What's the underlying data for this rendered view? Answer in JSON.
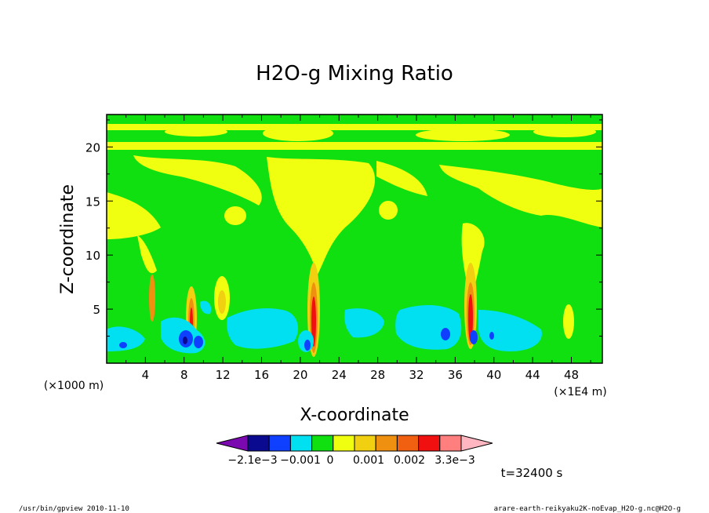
{
  "chart_data": {
    "type": "heatmap",
    "title": "H2O-g Mixing Ratio",
    "xlabel": "X-coordinate",
    "ylabel": "Z-coordinate",
    "x_unit_left": "(×1000 m)",
    "x_unit_right": "(×1E4 m)",
    "x_ticks": [
      "4",
      "8",
      "12",
      "16",
      "20",
      "24",
      "28",
      "32",
      "36",
      "40",
      "44",
      "48"
    ],
    "y_ticks": [
      "5",
      "10",
      "15",
      "20"
    ],
    "xlim": [
      0,
      51.2
    ],
    "ylim": [
      0,
      23
    ],
    "colorbar": {
      "labels": [
        "−2.1e−3",
        "−0.001",
        "0",
        "0.001",
        "0.002",
        "3.3e−3"
      ],
      "colors": [
        "#7a0ab0",
        "#0a0a90",
        "#1040ff",
        "#00e0f0",
        "#10e010",
        "#f0ff10",
        "#f0d010",
        "#f09010",
        "#f06010",
        "#f01010",
        "#ff7f7f",
        "#ffb6c1"
      ]
    },
    "time_label": "t=32400 s"
  },
  "footer": {
    "left": "/usr/bin/gpview   2010-11-10",
    "right": "arare-earth-reikyaku2K-noEvap_H2O-g.nc@H2O-g"
  }
}
